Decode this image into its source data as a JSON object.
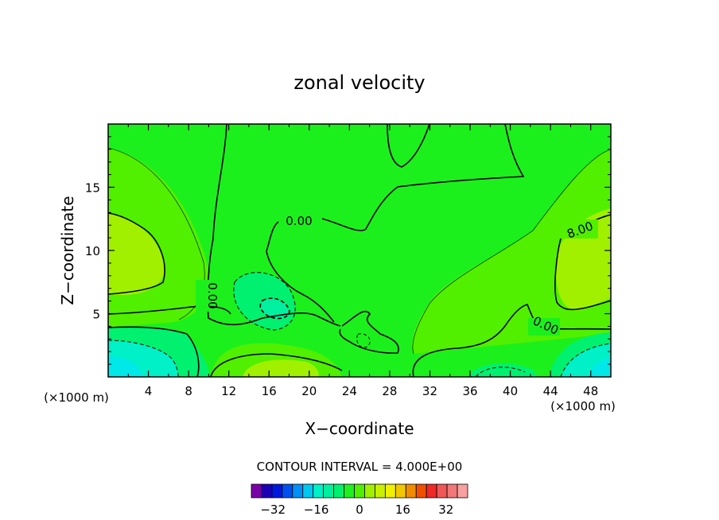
{
  "chart_data": {
    "type": "heatmap",
    "title": "zonal velocity",
    "xlabel": "X−coordinate",
    "ylabel": "Z−coordinate",
    "x_units_label": "(×1000 m)",
    "x_units_label_right": "(×1000 m)",
    "xlim": [
      0,
      50
    ],
    "ylim": [
      0,
      20
    ],
    "x_ticks": [
      "4",
      "8",
      "12",
      "16",
      "20",
      "24",
      "28",
      "32",
      "36",
      "40",
      "44",
      "48"
    ],
    "y_ticks": [
      "5",
      "10",
      "15"
    ],
    "contour_interval_text": "CONTOUR INTERVAL = 4.000E+00",
    "contour_interval": 4.0,
    "contour_labels": [
      "0.00",
      "0.00",
      "0.00",
      "8.00"
    ],
    "colorbar": {
      "tick_labels": [
        "−32",
        "−16",
        "0",
        "16",
        "32"
      ],
      "colors": [
        "#7a00a8",
        "#1c00b4",
        "#0018dc",
        "#0050f0",
        "#0090f8",
        "#00c8f0",
        "#00f0c8",
        "#00f0a0",
        "#00f070",
        "#20f020",
        "#50f000",
        "#a0f000",
        "#c8f000",
        "#f0f000",
        "#f0c800",
        "#f08c00",
        "#f05000",
        "#f02828",
        "#f05858",
        "#f07878",
        "#f8a0a0"
      ]
    }
  }
}
